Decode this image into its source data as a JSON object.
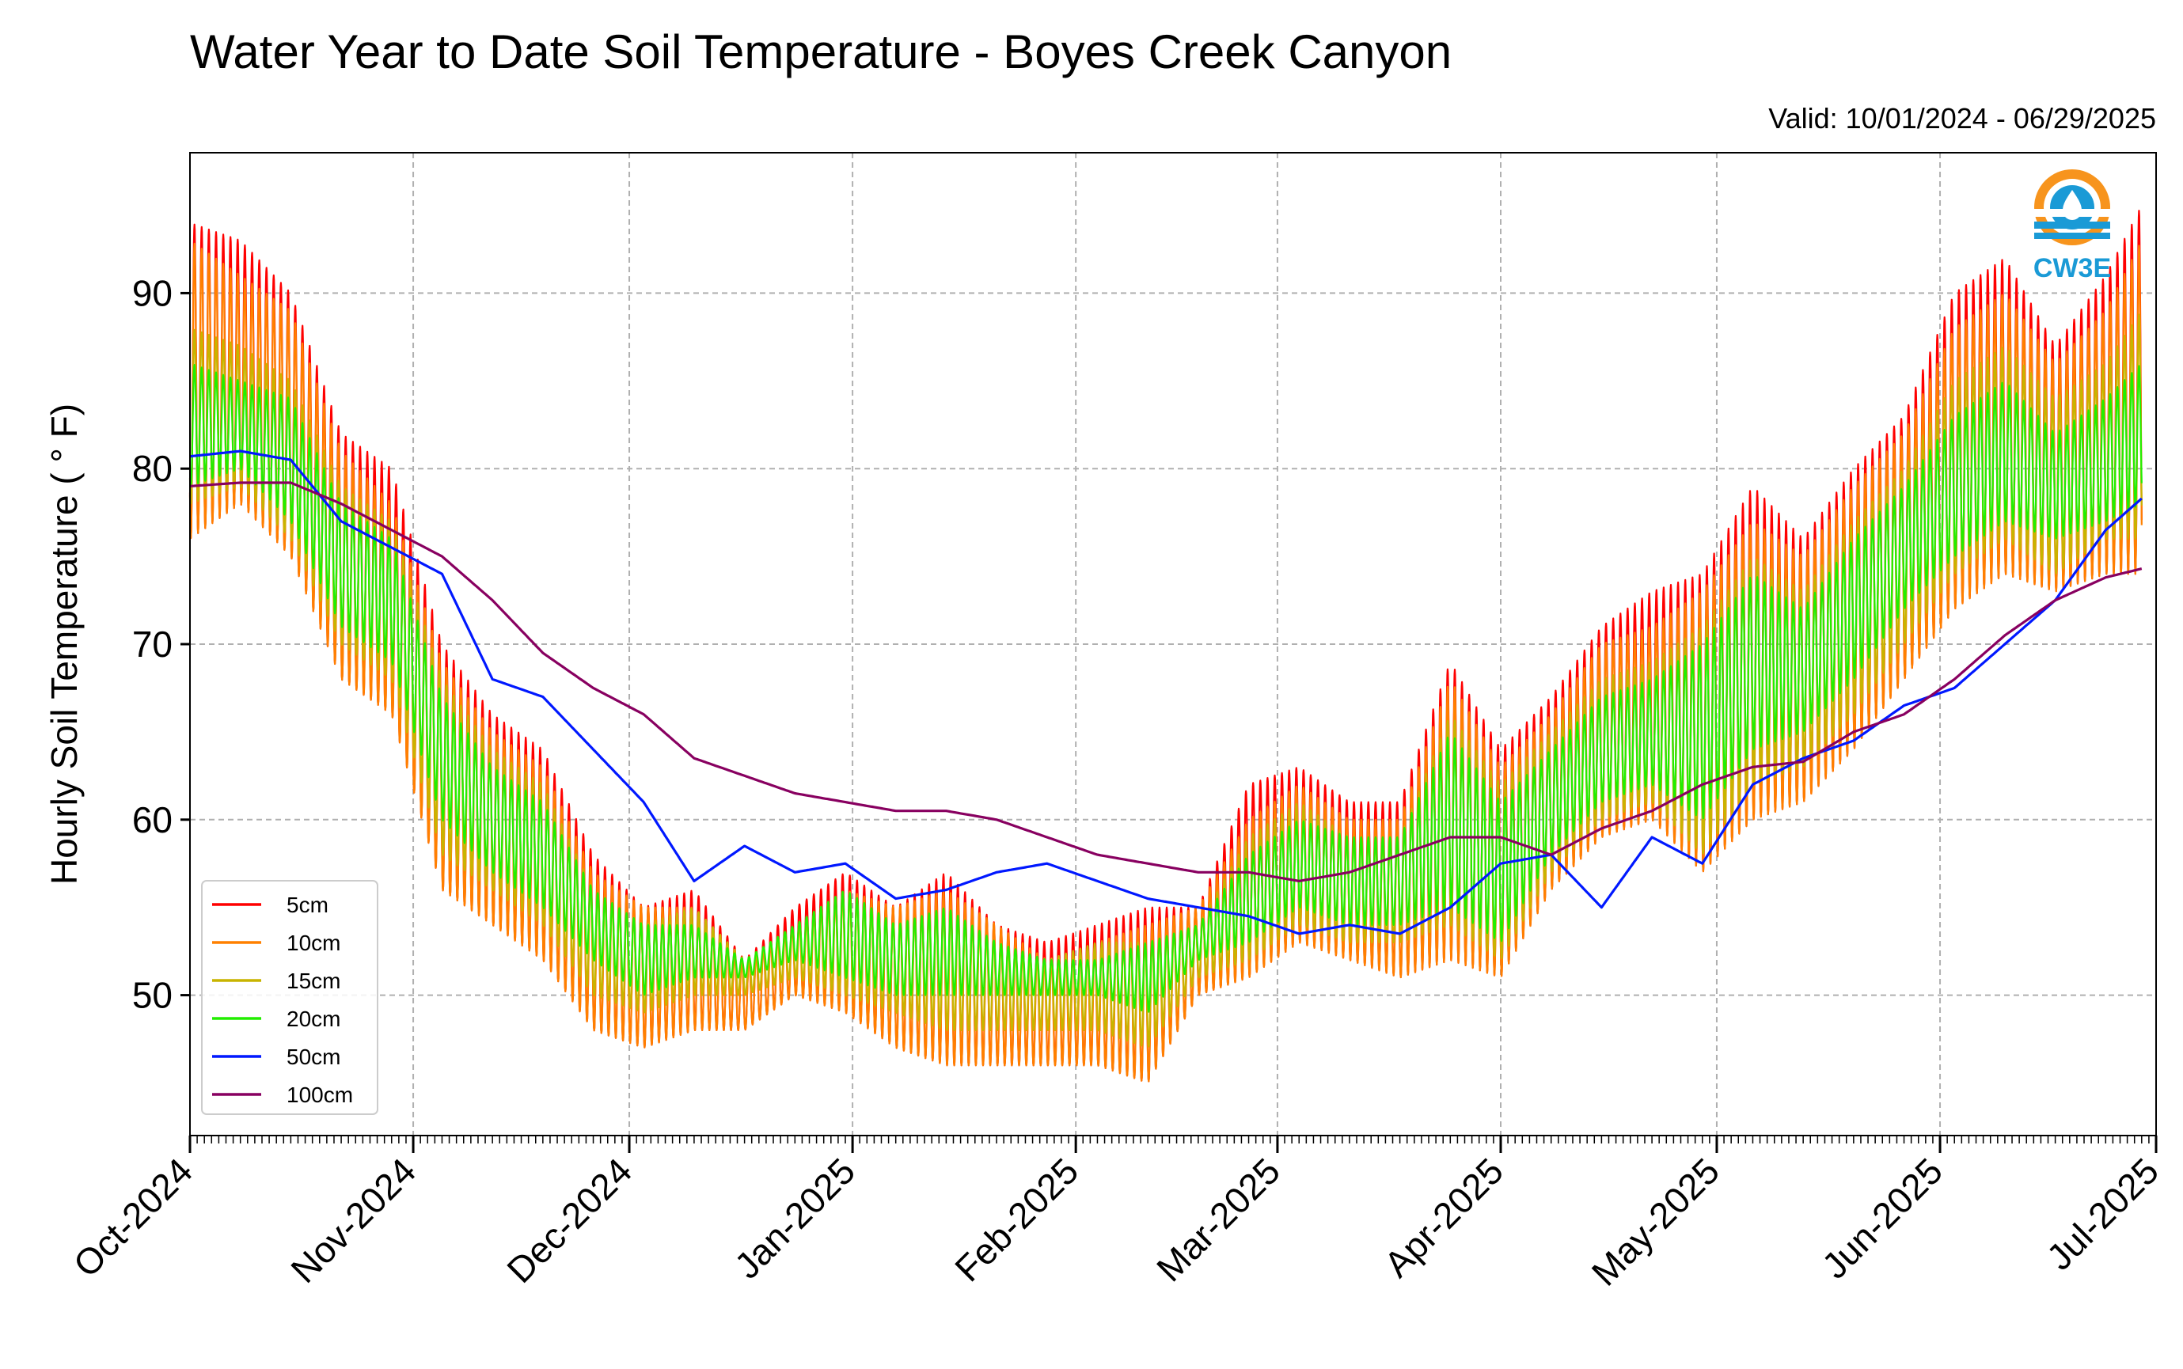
{
  "chart_data": {
    "type": "line",
    "title": "Water Year to Date Soil Temperature - Boyes Creek Canyon",
    "subtitle": "Valid: 10/01/2024 - 06/29/2025",
    "ylabel": "Hourly Soil Temperature ( ° F)",
    "xlabel": "",
    "ylim": [
      42,
      98
    ],
    "xlim": [
      "2024-10-01",
      "2025-07-01"
    ],
    "grid": true,
    "legend_position": "lower-left",
    "logo_text": "CW3E",
    "x_ticks": [
      "Oct-2024",
      "Nov-2024",
      "Dec-2024",
      "Jan-2025",
      "Feb-2025",
      "Mar-2025",
      "Apr-2025",
      "May-2025",
      "Jun-2025",
      "Jul-2025"
    ],
    "y_ticks": [
      50,
      60,
      70,
      80,
      90
    ],
    "x_sample_dates": [
      "2024-10-01",
      "2024-10-08",
      "2024-10-15",
      "2024-10-22",
      "2024-10-29",
      "2024-11-05",
      "2024-11-12",
      "2024-11-19",
      "2024-11-26",
      "2024-12-03",
      "2024-12-10",
      "2024-12-17",
      "2024-12-24",
      "2024-12-31",
      "2025-01-07",
      "2025-01-14",
      "2025-01-21",
      "2025-01-28",
      "2025-02-04",
      "2025-02-11",
      "2025-02-18",
      "2025-02-25",
      "2025-03-04",
      "2025-03-11",
      "2025-03-18",
      "2025-03-25",
      "2025-04-01",
      "2025-04-08",
      "2025-04-15",
      "2025-04-22",
      "2025-04-29",
      "2025-05-06",
      "2025-05-13",
      "2025-05-20",
      "2025-05-27",
      "2025-06-03",
      "2025-06-10",
      "2025-06-17",
      "2025-06-24",
      "2025-06-29"
    ],
    "series": [
      {
        "name": "5cm",
        "color": "#ff0000",
        "daily_max": [
          94,
          93,
          90,
          82,
          80,
          70,
          66,
          64,
          58,
          55,
          56,
          52,
          55,
          57,
          55,
          57,
          54,
          53,
          54,
          55,
          55,
          62,
          63,
          61,
          61,
          69,
          64,
          67,
          71,
          73,
          74,
          79,
          76,
          80,
          83,
          90,
          92,
          87,
          91,
          95
        ],
        "daily_min": [
          76,
          78,
          75,
          68,
          66,
          56,
          54,
          52,
          48,
          47,
          48,
          48,
          50,
          49,
          47,
          46,
          46,
          46,
          46,
          45,
          50,
          51,
          53,
          52,
          51,
          52,
          51,
          56,
          59,
          60,
          57,
          60,
          61,
          64,
          68,
          72,
          74,
          73,
          74,
          74
        ]
      },
      {
        "name": "10cm",
        "color": "#ff8000",
        "daily_max": [
          93,
          91,
          89,
          81,
          78,
          69,
          65,
          63,
          57,
          55,
          55,
          52,
          54,
          56,
          55,
          56,
          54,
          52,
          53,
          54,
          55,
          60,
          62,
          60,
          60,
          68,
          63,
          66,
          70,
          71,
          73,
          77,
          75,
          79,
          82,
          88,
          90,
          86,
          89,
          93
        ],
        "daily_min": [
          76,
          78,
          75,
          68,
          66,
          56,
          54,
          52,
          48,
          47,
          48,
          48,
          50,
          49,
          47,
          46,
          46,
          46,
          46,
          45,
          50,
          51,
          53,
          52,
          51,
          52,
          51,
          56,
          59,
          60,
          57,
          60,
          61,
          64,
          68,
          72,
          74,
          73,
          74,
          74
        ]
      },
      {
        "name": "15cm",
        "color": "#c8b400",
        "daily_max": [
          88,
          87,
          85,
          79,
          77,
          68,
          64,
          62,
          56,
          54,
          55,
          52,
          54,
          56,
          54,
          55,
          53,
          52,
          53,
          53,
          54,
          59,
          61,
          59,
          59,
          66,
          62,
          65,
          68,
          69,
          71,
          75,
          73,
          77,
          80,
          85,
          87,
          84,
          86,
          89
        ],
        "daily_min": [
          78,
          79,
          76,
          70,
          68,
          58,
          56,
          54,
          50,
          49,
          50,
          50,
          51,
          50,
          49,
          48,
          48,
          48,
          48,
          47,
          51,
          52,
          54,
          53,
          53,
          54,
          52,
          57,
          60,
          61,
          58,
          62,
          63,
          66,
          70,
          74,
          76,
          74,
          76,
          76
        ]
      },
      {
        "name": "20cm",
        "color": "#22ee00",
        "daily_max": [
          86,
          85,
          84,
          78,
          76,
          67,
          63,
          61,
          56,
          54,
          54,
          52,
          54,
          56,
          54,
          55,
          53,
          52,
          52,
          53,
          54,
          58,
          60,
          59,
          59,
          65,
          61,
          64,
          67,
          68,
          70,
          74,
          72,
          76,
          79,
          83,
          85,
          82,
          84,
          86
        ],
        "daily_min": [
          79,
          80,
          77,
          71,
          69,
          60,
          57,
          55,
          52,
          50,
          51,
          51,
          52,
          51,
          50,
          50,
          50,
          50,
          50,
          49,
          52,
          53,
          55,
          54,
          54,
          55,
          53,
          58,
          61,
          62,
          60,
          64,
          65,
          68,
          72,
          75,
          77,
          76,
          77,
          78
        ]
      },
      {
        "name": "50cm",
        "color": "#0018ff",
        "values": [
          80.7,
          81,
          80.5,
          77,
          75.5,
          74,
          68,
          67,
          64,
          61,
          56.5,
          58.5,
          57,
          57.5,
          55.5,
          56,
          57,
          57.5,
          56.5,
          55.5,
          55,
          54.5,
          53.5,
          54,
          53.5,
          55,
          57.5,
          58,
          55,
          59,
          57.5,
          62,
          63.5,
          64.5,
          66.5,
          67.5,
          70,
          72.5,
          76.5,
          78.3
        ]
      },
      {
        "name": "100cm",
        "color": "#880060",
        "values": [
          79,
          79.2,
          79.2,
          78,
          76.5,
          75,
          72.5,
          69.5,
          67.5,
          66,
          63.5,
          62.5,
          61.5,
          61,
          60.5,
          60.5,
          60,
          59,
          58,
          57.5,
          57,
          57,
          56.5,
          57,
          58,
          59,
          59,
          58,
          59.5,
          60.5,
          62,
          63,
          63.3,
          65,
          66,
          68,
          70.5,
          72.5,
          73.8,
          74.3
        ]
      }
    ]
  }
}
